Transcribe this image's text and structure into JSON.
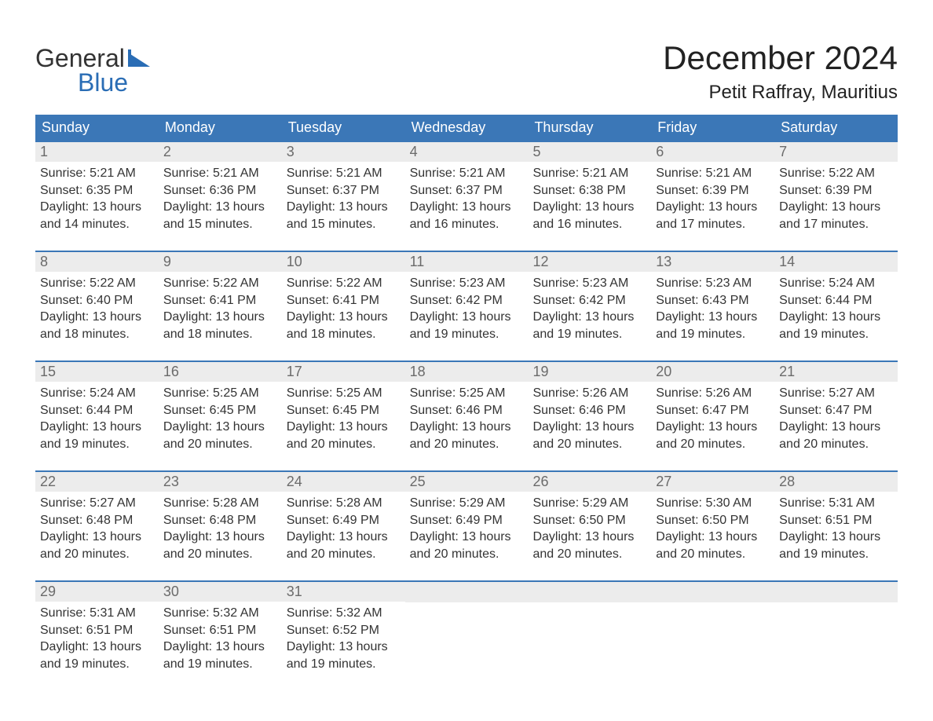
{
  "logo": {
    "text1": "General",
    "text2": "Blue",
    "flag_color": "#2a6db5",
    "text_gray": "#333333",
    "text_blue": "#2a6db5"
  },
  "title": {
    "month": "December 2024",
    "location": "Petit Raffray, Mauritius"
  },
  "colors": {
    "header_bg": "#3b77b7",
    "header_text": "#ffffff",
    "daynum_bg": "#ececec",
    "daynum_text": "#6b6b6b",
    "body_text": "#333333",
    "background": "#ffffff"
  },
  "day_names": [
    "Sunday",
    "Monday",
    "Tuesday",
    "Wednesday",
    "Thursday",
    "Friday",
    "Saturday"
  ],
  "weeks": [
    [
      {
        "n": "1",
        "sunrise": "Sunrise: 5:21 AM",
        "sunset": "Sunset: 6:35 PM",
        "day1": "Daylight: 13 hours",
        "day2": "and 14 minutes."
      },
      {
        "n": "2",
        "sunrise": "Sunrise: 5:21 AM",
        "sunset": "Sunset: 6:36 PM",
        "day1": "Daylight: 13 hours",
        "day2": "and 15 minutes."
      },
      {
        "n": "3",
        "sunrise": "Sunrise: 5:21 AM",
        "sunset": "Sunset: 6:37 PM",
        "day1": "Daylight: 13 hours",
        "day2": "and 15 minutes."
      },
      {
        "n": "4",
        "sunrise": "Sunrise: 5:21 AM",
        "sunset": "Sunset: 6:37 PM",
        "day1": "Daylight: 13 hours",
        "day2": "and 16 minutes."
      },
      {
        "n": "5",
        "sunrise": "Sunrise: 5:21 AM",
        "sunset": "Sunset: 6:38 PM",
        "day1": "Daylight: 13 hours",
        "day2": "and 16 minutes."
      },
      {
        "n": "6",
        "sunrise": "Sunrise: 5:21 AM",
        "sunset": "Sunset: 6:39 PM",
        "day1": "Daylight: 13 hours",
        "day2": "and 17 minutes."
      },
      {
        "n": "7",
        "sunrise": "Sunrise: 5:22 AM",
        "sunset": "Sunset: 6:39 PM",
        "day1": "Daylight: 13 hours",
        "day2": "and 17 minutes."
      }
    ],
    [
      {
        "n": "8",
        "sunrise": "Sunrise: 5:22 AM",
        "sunset": "Sunset: 6:40 PM",
        "day1": "Daylight: 13 hours",
        "day2": "and 18 minutes."
      },
      {
        "n": "9",
        "sunrise": "Sunrise: 5:22 AM",
        "sunset": "Sunset: 6:41 PM",
        "day1": "Daylight: 13 hours",
        "day2": "and 18 minutes."
      },
      {
        "n": "10",
        "sunrise": "Sunrise: 5:22 AM",
        "sunset": "Sunset: 6:41 PM",
        "day1": "Daylight: 13 hours",
        "day2": "and 18 minutes."
      },
      {
        "n": "11",
        "sunrise": "Sunrise: 5:23 AM",
        "sunset": "Sunset: 6:42 PM",
        "day1": "Daylight: 13 hours",
        "day2": "and 19 minutes."
      },
      {
        "n": "12",
        "sunrise": "Sunrise: 5:23 AM",
        "sunset": "Sunset: 6:42 PM",
        "day1": "Daylight: 13 hours",
        "day2": "and 19 minutes."
      },
      {
        "n": "13",
        "sunrise": "Sunrise: 5:23 AM",
        "sunset": "Sunset: 6:43 PM",
        "day1": "Daylight: 13 hours",
        "day2": "and 19 minutes."
      },
      {
        "n": "14",
        "sunrise": "Sunrise: 5:24 AM",
        "sunset": "Sunset: 6:44 PM",
        "day1": "Daylight: 13 hours",
        "day2": "and 19 minutes."
      }
    ],
    [
      {
        "n": "15",
        "sunrise": "Sunrise: 5:24 AM",
        "sunset": "Sunset: 6:44 PM",
        "day1": "Daylight: 13 hours",
        "day2": "and 19 minutes."
      },
      {
        "n": "16",
        "sunrise": "Sunrise: 5:25 AM",
        "sunset": "Sunset: 6:45 PM",
        "day1": "Daylight: 13 hours",
        "day2": "and 20 minutes."
      },
      {
        "n": "17",
        "sunrise": "Sunrise: 5:25 AM",
        "sunset": "Sunset: 6:45 PM",
        "day1": "Daylight: 13 hours",
        "day2": "and 20 minutes."
      },
      {
        "n": "18",
        "sunrise": "Sunrise: 5:25 AM",
        "sunset": "Sunset: 6:46 PM",
        "day1": "Daylight: 13 hours",
        "day2": "and 20 minutes."
      },
      {
        "n": "19",
        "sunrise": "Sunrise: 5:26 AM",
        "sunset": "Sunset: 6:46 PM",
        "day1": "Daylight: 13 hours",
        "day2": "and 20 minutes."
      },
      {
        "n": "20",
        "sunrise": "Sunrise: 5:26 AM",
        "sunset": "Sunset: 6:47 PM",
        "day1": "Daylight: 13 hours",
        "day2": "and 20 minutes."
      },
      {
        "n": "21",
        "sunrise": "Sunrise: 5:27 AM",
        "sunset": "Sunset: 6:47 PM",
        "day1": "Daylight: 13 hours",
        "day2": "and 20 minutes."
      }
    ],
    [
      {
        "n": "22",
        "sunrise": "Sunrise: 5:27 AM",
        "sunset": "Sunset: 6:48 PM",
        "day1": "Daylight: 13 hours",
        "day2": "and 20 minutes."
      },
      {
        "n": "23",
        "sunrise": "Sunrise: 5:28 AM",
        "sunset": "Sunset: 6:48 PM",
        "day1": "Daylight: 13 hours",
        "day2": "and 20 minutes."
      },
      {
        "n": "24",
        "sunrise": "Sunrise: 5:28 AM",
        "sunset": "Sunset: 6:49 PM",
        "day1": "Daylight: 13 hours",
        "day2": "and 20 minutes."
      },
      {
        "n": "25",
        "sunrise": "Sunrise: 5:29 AM",
        "sunset": "Sunset: 6:49 PM",
        "day1": "Daylight: 13 hours",
        "day2": "and 20 minutes."
      },
      {
        "n": "26",
        "sunrise": "Sunrise: 5:29 AM",
        "sunset": "Sunset: 6:50 PM",
        "day1": "Daylight: 13 hours",
        "day2": "and 20 minutes."
      },
      {
        "n": "27",
        "sunrise": "Sunrise: 5:30 AM",
        "sunset": "Sunset: 6:50 PM",
        "day1": "Daylight: 13 hours",
        "day2": "and 20 minutes."
      },
      {
        "n": "28",
        "sunrise": "Sunrise: 5:31 AM",
        "sunset": "Sunset: 6:51 PM",
        "day1": "Daylight: 13 hours",
        "day2": "and 19 minutes."
      }
    ],
    [
      {
        "n": "29",
        "sunrise": "Sunrise: 5:31 AM",
        "sunset": "Sunset: 6:51 PM",
        "day1": "Daylight: 13 hours",
        "day2": "and 19 minutes."
      },
      {
        "n": "30",
        "sunrise": "Sunrise: 5:32 AM",
        "sunset": "Sunset: 6:51 PM",
        "day1": "Daylight: 13 hours",
        "day2": "and 19 minutes."
      },
      {
        "n": "31",
        "sunrise": "Sunrise: 5:32 AM",
        "sunset": "Sunset: 6:52 PM",
        "day1": "Daylight: 13 hours",
        "day2": "and 19 minutes."
      },
      null,
      null,
      null,
      null
    ]
  ]
}
